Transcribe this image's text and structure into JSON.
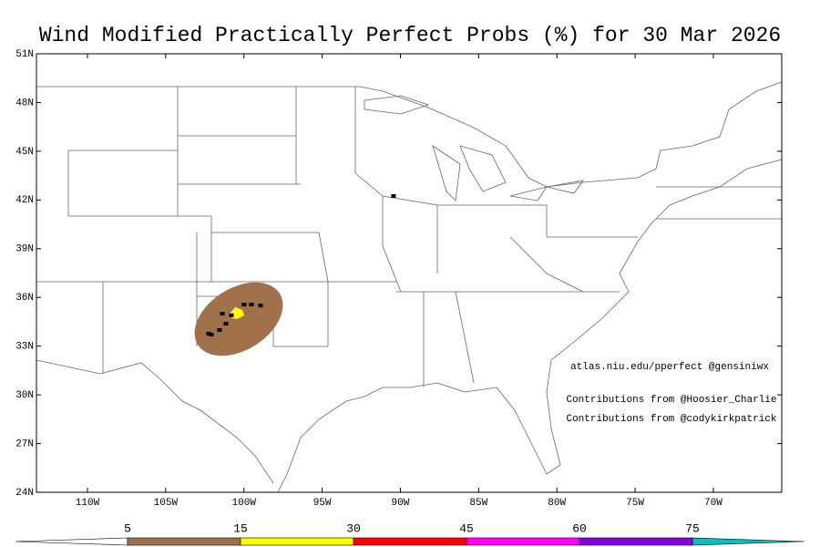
{
  "title": "Wind Modified Practically Perfect Probs (%) for 30 Mar 2026",
  "map": {
    "lonlim": [
      -113.26,
      -65.63
    ],
    "latlim": [
      24,
      51
    ],
    "latticks": [
      {
        "value": 24,
        "label": "24N"
      },
      {
        "value": 27,
        "label": "27N"
      },
      {
        "value": 30,
        "label": "30N"
      },
      {
        "value": 33,
        "label": "33N"
      },
      {
        "value": 36,
        "label": "36N"
      },
      {
        "value": 39,
        "label": "39N"
      },
      {
        "value": 42,
        "label": "42N"
      },
      {
        "value": 45,
        "label": "45N"
      },
      {
        "value": 48,
        "label": "48N"
      },
      {
        "value": 51,
        "label": "51N"
      }
    ],
    "lonticks": [
      {
        "value": -110,
        "label": "110W"
      },
      {
        "value": -105,
        "label": "105W"
      },
      {
        "value": -100,
        "label": "100W"
      },
      {
        "value": -95,
        "label": "95W"
      },
      {
        "value": -90,
        "label": "90W"
      },
      {
        "value": -85,
        "label": "85W"
      },
      {
        "value": -80,
        "label": "80W"
      },
      {
        "value": -75,
        "label": "75W"
      },
      {
        "value": -70,
        "label": "70W"
      }
    ],
    "reports": {
      "lon": [
        -90.44,
        -101.38,
        -99.99,
        -99.52,
        -98.94,
        -100.8,
        -101.15,
        -101.56,
        -102.08,
        -102.26
      ],
      "lat": [
        42.24,
        35.0,
        35.56,
        35.56,
        35.5,
        34.9,
        34.38,
        33.99,
        33.71,
        33.77
      ]
    }
  },
  "annotations": [
    "atlas.niu.edu/pperfect @gensiniwx",
    "Contributions from @Hoosier_Charlie",
    "Contributions from @codykirkpatrick"
  ],
  "colorbar": {
    "levels": [
      5,
      15,
      30,
      45,
      60,
      75
    ],
    "colors": [
      "#ffffff",
      "#a0714b",
      "#ffff00",
      "#ff0000",
      "#ff00ff",
      "#8a00d4",
      "#00c0c0"
    ]
  }
}
